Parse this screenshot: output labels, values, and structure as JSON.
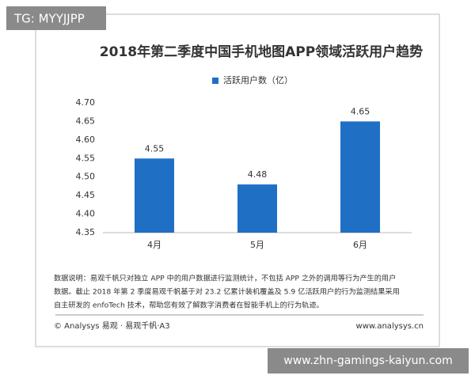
{
  "badge": "TG: MYYJJPP",
  "site": "www.zhn-gamings-kaiyun.com",
  "chart_data": {
    "type": "bar",
    "title": "2018年第二季度中国手机地图APP领域活跃用户趋势",
    "series": [
      {
        "name": "活跃用户数（亿）",
        "color": "#1f6fc5",
        "values": [
          4.55,
          4.48,
          4.65
        ]
      }
    ],
    "categories": [
      "4月",
      "5月",
      "6月"
    ],
    "ylim": [
      4.35,
      4.7
    ],
    "yticks": [
      4.35,
      {
        "value": 4.4,
        "label": "4.40"
      },
      4.45,
      {
        "value": 4.5,
        "label": "4.50"
      },
      4.55,
      {
        "value": 4.6,
        "label": "4.60"
      },
      4.65,
      {
        "value": 4.7,
        "label": "4.70"
      }
    ],
    "grid": false,
    "notes": [
      "数据说明：易观千帆只对独立 APP 中的用户数据进行监测统计，不包括 APP 之外的调用等行为产生的用户",
      "数据。截止 2018 年第 2 季度易观千帆基于对 23.2 亿累计装机覆盖及 5.9 亿活跃用户的行为监测结果采用",
      "自主研发的 enfoTech 技术，帮助您有效了解数字消费者在智能手机上的行为轨迹。"
    ],
    "source": "© Analysys 易观 · 易观千帆·A3",
    "source_url": "www.analysys.cn"
  }
}
